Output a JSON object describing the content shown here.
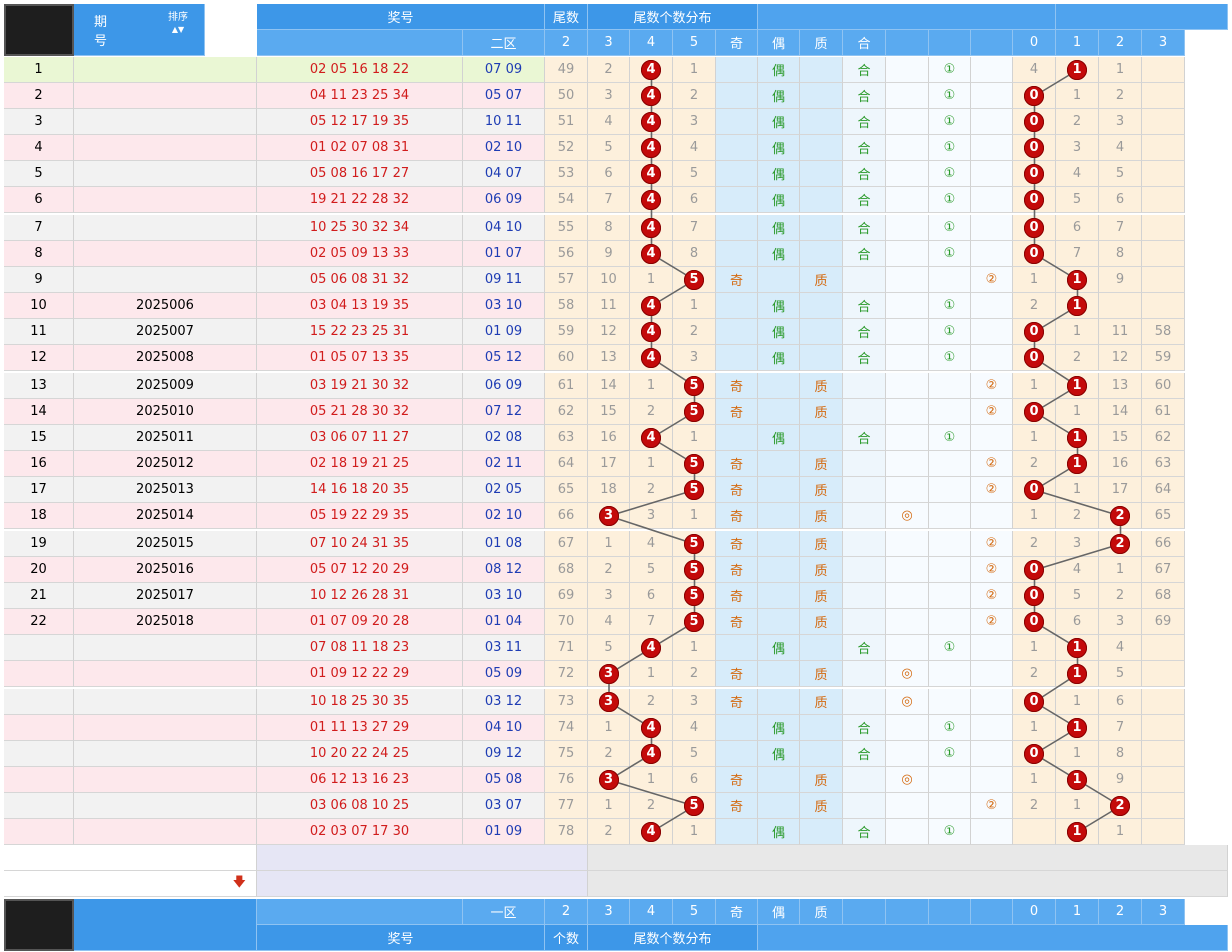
{
  "header": {
    "issue_label_1": "期",
    "issue_label_2": "号",
    "sort_label": "排序",
    "prize_label": "奖号",
    "zone2_label": "二区",
    "zone1_label": "一区",
    "tailcount_label_1": "尾数",
    "tailcount_label_2": "个数",
    "distribution_label": "尾数个数分布",
    "dist_cols": [
      "2",
      "3",
      "4",
      "5"
    ],
    "parity_cols": [
      "奇",
      "偶",
      "质",
      "合"
    ],
    "mod_cols": [
      "0",
      "1",
      "2",
      "3"
    ]
  },
  "colors": {
    "header_blue": "#3d97e8",
    "row_pink": "#fde8ec",
    "row_grey": "#f2f2f2",
    "row_first": "#eaf7d4",
    "dist_bg": "#fdf0dc",
    "parity_bg": "#d7ecfa",
    "ball": "#c40a0a"
  },
  "chart_data": {
    "type": "table",
    "rows": [
      {
        "no": "1",
        "issue": "",
        "red": "02 05 16 18 22",
        "blue": "07 09",
        "count": "4",
        "dist": [
          "49",
          "2",
          "4",
          "1"
        ],
        "hit": 2,
        "parity": [
          "",
          "偶",
          "",
          "合"
        ],
        "route": [
          "",
          "①",
          ""
        ],
        "mod": [
          "4",
          "1",
          "1",
          ""
        ],
        "modhit": 1
      },
      {
        "no": "2",
        "issue": "",
        "red": "04 11 23 25 34",
        "blue": "05 07",
        "count": "4",
        "dist": [
          "50",
          "3",
          "4",
          "2"
        ],
        "hit": 2,
        "parity": [
          "",
          "偶",
          "",
          "合"
        ],
        "route": [
          "",
          "①",
          ""
        ],
        "mod": [
          "0",
          "1",
          "2",
          ""
        ],
        "modhit": 0
      },
      {
        "no": "3",
        "issue": "",
        "red": "05 12 17 19 35",
        "blue": "10 11",
        "count": "4",
        "dist": [
          "51",
          "4",
          "4",
          "3"
        ],
        "hit": 2,
        "parity": [
          "",
          "偶",
          "",
          "合"
        ],
        "route": [
          "",
          "①",
          ""
        ],
        "mod": [
          "0",
          "2",
          "3",
          ""
        ],
        "modhit": 0
      },
      {
        "no": "4",
        "issue": "",
        "red": "01 02 07 08 31",
        "blue": "02 10",
        "count": "4",
        "dist": [
          "52",
          "5",
          "4",
          "4"
        ],
        "hit": 2,
        "parity": [
          "",
          "偶",
          "",
          "合"
        ],
        "route": [
          "",
          "①",
          ""
        ],
        "mod": [
          "0",
          "3",
          "4",
          ""
        ],
        "modhit": 0
      },
      {
        "no": "5",
        "issue": "",
        "red": "05 08 16 17 27",
        "blue": "04 07",
        "count": "4",
        "dist": [
          "53",
          "6",
          "4",
          "5"
        ],
        "hit": 2,
        "parity": [
          "",
          "偶",
          "",
          "合"
        ],
        "route": [
          "",
          "①",
          ""
        ],
        "mod": [
          "0",
          "4",
          "5",
          ""
        ],
        "modhit": 0
      },
      {
        "no": "6",
        "issue": "",
        "red": "19 21 22 28 32",
        "blue": "06 09",
        "count": "4",
        "dist": [
          "54",
          "7",
          "4",
          "6"
        ],
        "hit": 2,
        "parity": [
          "",
          "偶",
          "",
          "合"
        ],
        "route": [
          "",
          "①",
          ""
        ],
        "mod": [
          "0",
          "5",
          "6",
          ""
        ],
        "modhit": 0
      },
      {
        "no": "7",
        "issue": "",
        "red": "10 25 30 32 34",
        "blue": "04 10",
        "count": "4",
        "dist": [
          "55",
          "8",
          "4",
          "7"
        ],
        "hit": 2,
        "parity": [
          "",
          "偶",
          "",
          "合"
        ],
        "route": [
          "",
          "①",
          ""
        ],
        "mod": [
          "0",
          "6",
          "7",
          ""
        ],
        "modhit": 0
      },
      {
        "no": "8",
        "issue": "",
        "red": "02 05 09 13 33",
        "blue": "01 07",
        "count": "4",
        "dist": [
          "56",
          "9",
          "4",
          "8"
        ],
        "hit": 2,
        "parity": [
          "",
          "偶",
          "",
          "合"
        ],
        "route": [
          "",
          "①",
          ""
        ],
        "mod": [
          "0",
          "7",
          "8",
          ""
        ],
        "modhit": 0
      },
      {
        "no": "9",
        "issue": "",
        "red": "05 06 08 31 32",
        "blue": "09 11",
        "count": "5",
        "dist": [
          "57",
          "10",
          "1",
          "5"
        ],
        "hit": 3,
        "parity": [
          "奇",
          "",
          "质",
          ""
        ],
        "route": [
          "",
          "",
          "②"
        ],
        "mod": [
          "1",
          "1",
          "9",
          ""
        ],
        "modhit": 1
      },
      {
        "no": "10",
        "issue": "2025006",
        "red": "03 04 13 19 35",
        "blue": "03 10",
        "count": "4",
        "dist": [
          "58",
          "11",
          "4",
          "1"
        ],
        "hit": 2,
        "parity": [
          "",
          "偶",
          "",
          "合"
        ],
        "route": [
          "",
          "①",
          ""
        ],
        "mod": [
          "2",
          "1",
          "",
          ""
        ],
        "modhit": 1
      },
      {
        "no": "11",
        "issue": "2025007",
        "red": "15 22 23 25 31",
        "blue": "01 09",
        "count": "4",
        "dist": [
          "59",
          "12",
          "4",
          "2"
        ],
        "hit": 2,
        "parity": [
          "",
          "偶",
          "",
          "合"
        ],
        "route": [
          "",
          "①",
          ""
        ],
        "mod": [
          "0",
          "1",
          "11",
          "58"
        ],
        "modhit": 0
      },
      {
        "no": "12",
        "issue": "2025008",
        "red": "01 05 07 13 35",
        "blue": "05 12",
        "count": "4",
        "dist": [
          "60",
          "13",
          "4",
          "3"
        ],
        "hit": 2,
        "parity": [
          "",
          "偶",
          "",
          "合"
        ],
        "route": [
          "",
          "①",
          ""
        ],
        "mod": [
          "0",
          "2",
          "12",
          "59"
        ],
        "modhit": 0
      },
      {
        "no": "13",
        "issue": "2025009",
        "red": "03 19 21 30 32",
        "blue": "06 09",
        "count": "5",
        "dist": [
          "61",
          "14",
          "1",
          "5"
        ],
        "hit": 3,
        "parity": [
          "奇",
          "",
          "质",
          ""
        ],
        "route": [
          "",
          "",
          "②"
        ],
        "mod": [
          "1",
          "1",
          "13",
          "60"
        ],
        "modhit": 1
      },
      {
        "no": "14",
        "issue": "2025010",
        "red": "05 21 28 30 32",
        "blue": "07 12",
        "count": "5",
        "dist": [
          "62",
          "15",
          "2",
          "5"
        ],
        "hit": 3,
        "parity": [
          "奇",
          "",
          "质",
          ""
        ],
        "route": [
          "",
          "",
          "②"
        ],
        "mod": [
          "0",
          "1",
          "14",
          "61"
        ],
        "modhit": 0
      },
      {
        "no": "15",
        "issue": "2025011",
        "red": "03 06 07 11 27",
        "blue": "02 08",
        "count": "4",
        "dist": [
          "63",
          "16",
          "4",
          "1"
        ],
        "hit": 2,
        "parity": [
          "",
          "偶",
          "",
          "合"
        ],
        "route": [
          "",
          "①",
          ""
        ],
        "mod": [
          "1",
          "1",
          "15",
          "62"
        ],
        "modhit": 1
      },
      {
        "no": "16",
        "issue": "2025012",
        "red": "02 18 19 21 25",
        "blue": "02 11",
        "count": "5",
        "dist": [
          "64",
          "17",
          "1",
          "5"
        ],
        "hit": 3,
        "parity": [
          "奇",
          "",
          "质",
          ""
        ],
        "route": [
          "",
          "",
          "②"
        ],
        "mod": [
          "2",
          "1",
          "16",
          "63"
        ],
        "modhit": 1
      },
      {
        "no": "17",
        "issue": "2025013",
        "red": "14 16 18 20 35",
        "blue": "02 05",
        "count": "5",
        "dist": [
          "65",
          "18",
          "2",
          "5"
        ],
        "hit": 3,
        "parity": [
          "奇",
          "",
          "质",
          ""
        ],
        "route": [
          "",
          "",
          "②"
        ],
        "mod": [
          "0",
          "1",
          "17",
          "64"
        ],
        "modhit": 0
      },
      {
        "no": "18",
        "issue": "2025014",
        "red": "05 19 22 29 35",
        "blue": "02 10",
        "count": "3",
        "dist": [
          "66",
          "3",
          "3",
          "1"
        ],
        "hit": 1,
        "parity": [
          "奇",
          "",
          "质",
          ""
        ],
        "route": [
          "◎",
          "",
          ""
        ],
        "mod": [
          "1",
          "2",
          "2",
          "65"
        ],
        "modhit": 2
      },
      {
        "no": "19",
        "issue": "2025015",
        "red": "07 10 24 31 35",
        "blue": "01 08",
        "count": "5",
        "dist": [
          "67",
          "1",
          "4",
          "5"
        ],
        "hit": 3,
        "parity": [
          "奇",
          "",
          "质",
          ""
        ],
        "route": [
          "",
          "",
          "②"
        ],
        "mod": [
          "2",
          "3",
          "2",
          "66"
        ],
        "modhit": 2
      },
      {
        "no": "20",
        "issue": "2025016",
        "red": "05 07 12 20 29",
        "blue": "08 12",
        "count": "5",
        "dist": [
          "68",
          "2",
          "5",
          "5"
        ],
        "hit": 3,
        "parity": [
          "奇",
          "",
          "质",
          ""
        ],
        "route": [
          "",
          "",
          "②"
        ],
        "mod": [
          "0",
          "4",
          "1",
          "67"
        ],
        "modhit": 0
      },
      {
        "no": "21",
        "issue": "2025017",
        "red": "10 12 26 28 31",
        "blue": "03 10",
        "count": "5",
        "dist": [
          "69",
          "3",
          "6",
          "5"
        ],
        "hit": 3,
        "parity": [
          "奇",
          "",
          "质",
          ""
        ],
        "route": [
          "",
          "",
          "②"
        ],
        "mod": [
          "0",
          "5",
          "2",
          "68"
        ],
        "modhit": 0
      },
      {
        "no": "22",
        "issue": "2025018",
        "red": "01 07 09 20 28",
        "blue": "01 04",
        "count": "5",
        "dist": [
          "70",
          "4",
          "7",
          "5"
        ],
        "hit": 3,
        "parity": [
          "奇",
          "",
          "质",
          ""
        ],
        "route": [
          "",
          "",
          "②"
        ],
        "mod": [
          "0",
          "6",
          "3",
          "69"
        ],
        "modhit": 0
      },
      {
        "no": "",
        "issue": "",
        "red": "07 08 11 18 23",
        "blue": "03 11",
        "count": "4",
        "dist": [
          "71",
          "5",
          "4",
          "1"
        ],
        "hit": 2,
        "parity": [
          "",
          "偶",
          "",
          "合"
        ],
        "route": [
          "",
          "①",
          ""
        ],
        "mod": [
          "1",
          "1",
          "4",
          ""
        ],
        "modhit": 1
      },
      {
        "no": "",
        "issue": "",
        "red": "01 09 12 22 29",
        "blue": "05 09",
        "count": "3",
        "dist": [
          "72",
          "3",
          "1",
          "2"
        ],
        "hit": 1,
        "parity": [
          "奇",
          "",
          "质",
          ""
        ],
        "route": [
          "◎",
          "",
          ""
        ],
        "mod": [
          "2",
          "1",
          "5",
          ""
        ],
        "modhit": 1
      },
      {
        "no": "",
        "issue": "",
        "red": "10 18 25 30 35",
        "blue": "03 12",
        "count": "3",
        "dist": [
          "73",
          "3",
          "2",
          "3"
        ],
        "hit": 1,
        "parity": [
          "奇",
          "",
          "质",
          ""
        ],
        "route": [
          "◎",
          "",
          ""
        ],
        "mod": [
          "0",
          "1",
          "6",
          ""
        ],
        "modhit": 0
      },
      {
        "no": "",
        "issue": "",
        "red": "01 11 13 27 29",
        "blue": "04 10",
        "count": "4",
        "dist": [
          "74",
          "1",
          "4",
          "4"
        ],
        "hit": 2,
        "parity": [
          "",
          "偶",
          "",
          "合"
        ],
        "route": [
          "",
          "①",
          ""
        ],
        "mod": [
          "1",
          "1",
          "7",
          ""
        ],
        "modhit": 1
      },
      {
        "no": "",
        "issue": "",
        "red": "10 20 22 24 25",
        "blue": "09 12",
        "count": "4",
        "dist": [
          "75",
          "2",
          "4",
          "5"
        ],
        "hit": 2,
        "parity": [
          "",
          "偶",
          "",
          "合"
        ],
        "route": [
          "",
          "①",
          ""
        ],
        "mod": [
          "0",
          "1",
          "8",
          ""
        ],
        "modhit": 0
      },
      {
        "no": "",
        "issue": "",
        "red": "06 12 13 16 23",
        "blue": "05 08",
        "count": "3",
        "dist": [
          "76",
          "3",
          "1",
          "6"
        ],
        "hit": 1,
        "parity": [
          "奇",
          "",
          "质",
          ""
        ],
        "route": [
          "◎",
          "",
          ""
        ],
        "mod": [
          "1",
          "1",
          "9",
          ""
        ],
        "modhit": 1
      },
      {
        "no": "",
        "issue": "",
        "red": "03 06 08 10 25",
        "blue": "03 07",
        "count": "5",
        "dist": [
          "77",
          "1",
          "2",
          "5"
        ],
        "hit": 3,
        "parity": [
          "奇",
          "",
          "质",
          ""
        ],
        "route": [
          "",
          "",
          "②"
        ],
        "mod": [
          "2",
          "1",
          "2",
          ""
        ],
        "modhit": 2
      },
      {
        "no": "",
        "issue": "",
        "red": "02 03 07 17 30",
        "blue": "01 09",
        "count": "4",
        "dist": [
          "78",
          "2",
          "4",
          "1"
        ],
        "hit": 2,
        "parity": [
          "",
          "偶",
          "",
          "合"
        ],
        "route": [
          "",
          "①",
          ""
        ],
        "mod": [
          "",
          "1",
          "1",
          ""
        ],
        "modhit": 1
      }
    ]
  }
}
